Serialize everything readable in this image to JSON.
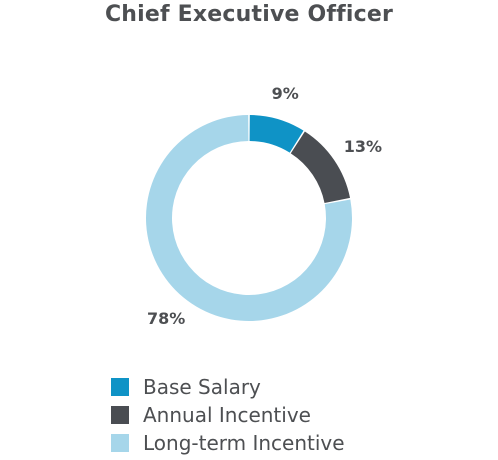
{
  "chart_data": {
    "type": "pie",
    "title": "Chief Executive Officer",
    "donut": true,
    "categories": [
      "Base Salary",
      "Annual Incentive",
      "Long-term Incentive"
    ],
    "values": [
      9,
      13,
      78
    ],
    "value_labels": [
      "9%",
      "13%",
      "78%"
    ],
    "colors": [
      "#0f93c6",
      "#4a4d52",
      "#a6d6ea"
    ],
    "legend_position": "bottom-left"
  }
}
